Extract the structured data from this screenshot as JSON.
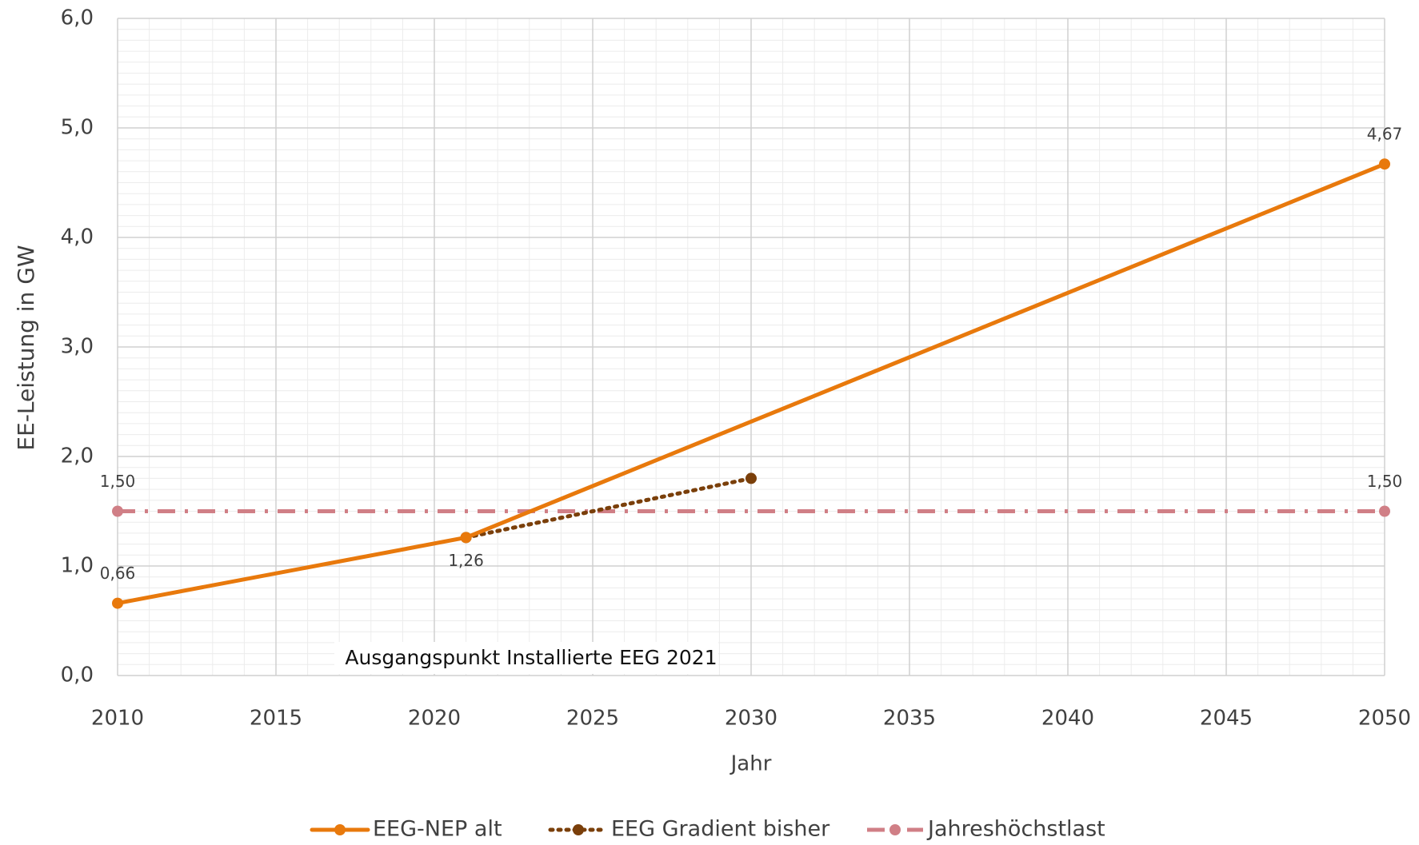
{
  "chart_data": {
    "type": "line",
    "y_label": "EE-Leistung in GW",
    "x_label": "Jahr",
    "annotation": "Ausgangspunkt Installierte EEG 2021",
    "xlim": [
      2010,
      2050
    ],
    "xticks": [
      2010,
      2015,
      2020,
      2025,
      2030,
      2035,
      2040,
      2045,
      2050
    ],
    "ylim": [
      0,
      6
    ],
    "yticks": [
      {
        "value": 0,
        "label": "0,0"
      },
      {
        "value": 1,
        "label": "1,0"
      },
      {
        "value": 2,
        "label": "2,0"
      },
      {
        "value": 3,
        "label": "3,0"
      },
      {
        "value": 4,
        "label": "4,0"
      },
      {
        "value": 5,
        "label": "5,0"
      },
      {
        "value": 6,
        "label": "6,0"
      }
    ],
    "grid": true,
    "minor_grid": true,
    "legend": "bottom",
    "series": [
      {
        "name": "EEG-NEP alt",
        "color": "#e8790c",
        "dash": "solid",
        "x": [
          2010,
          2021,
          2050
        ],
        "values": [
          0.66,
          1.26,
          4.67
        ],
        "value_labels": [
          "0,66",
          "1,26",
          "4,67"
        ]
      },
      {
        "name": "EEG Gradient bisher",
        "color": "#7a3f0a",
        "dash": "dotted",
        "x": [
          2021,
          2030
        ],
        "values": [
          1.26,
          1.8
        ]
      },
      {
        "name": "Jahreshöchstlast",
        "color": "#d07f86",
        "dash": "dashdot",
        "x": [
          2010,
          2050
        ],
        "values": [
          1.5,
          1.5
        ],
        "value_labels": [
          "1,50",
          "1,50"
        ]
      }
    ]
  }
}
